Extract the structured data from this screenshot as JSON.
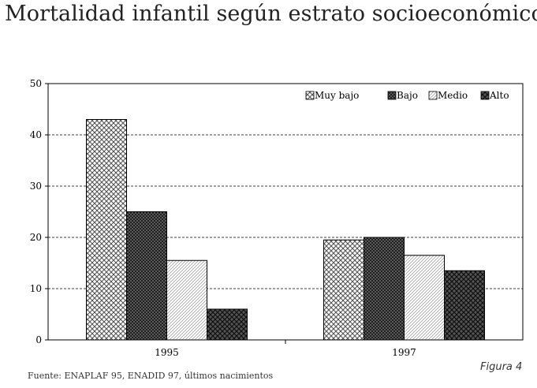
{
  "title": "Mortalidad infantil según estrato socioeconómico",
  "source": "Fuente: ENAPLAF 95, ENADID 97, últimos nacimientos",
  "figure_label": "Figura 4",
  "chart_data": {
    "type": "bar",
    "categories": [
      "1995",
      "1997"
    ],
    "series": [
      {
        "name": "Muy bajo",
        "values": [
          43,
          19.5
        ],
        "pattern": "pat-muybajo"
      },
      {
        "name": "Bajo",
        "values": [
          25,
          20
        ],
        "pattern": "pat-bajo"
      },
      {
        "name": "Medio",
        "values": [
          15.5,
          16.5
        ],
        "pattern": "pat-medio"
      },
      {
        "name": "Alto",
        "values": [
          6,
          13.5
        ],
        "pattern": "pat-alto"
      }
    ],
    "ylim": [
      0,
      50
    ],
    "yticks": [
      0,
      10,
      20,
      30,
      40,
      50
    ],
    "grid": true,
    "legend": "top-right"
  }
}
